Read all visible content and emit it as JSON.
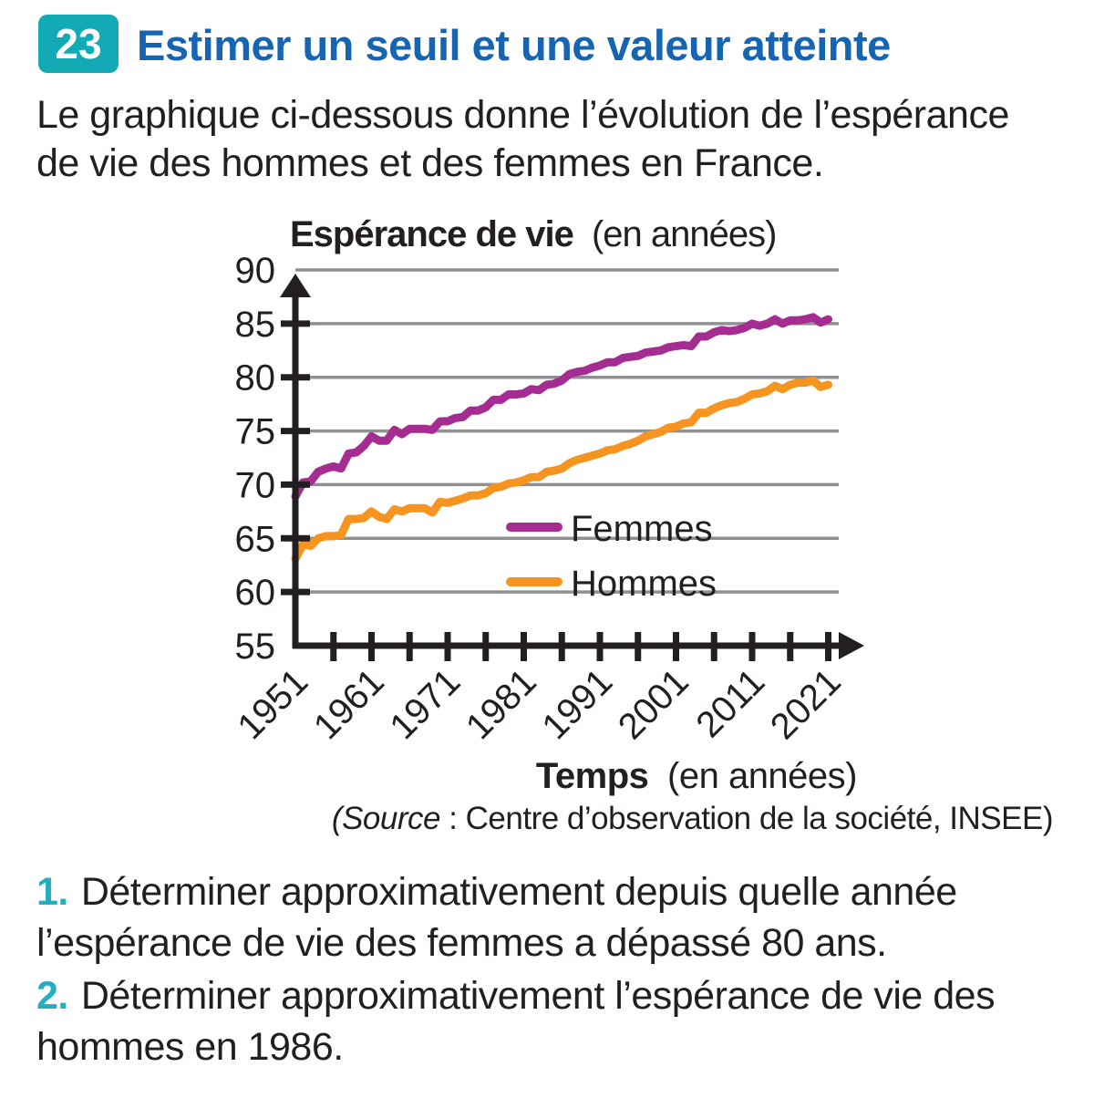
{
  "exercise": {
    "number": "23",
    "title": "Estimer un seuil et une valeur atteinte",
    "intro_lines": [
      "Le graphique ci-dessous donne l’évolution de l’espérance",
      "de vie des hommes et des femmes en France."
    ],
    "source": {
      "italic": "(Source",
      "rest": " : Centre d’observation de la société, INSEE)"
    },
    "questions": [
      {
        "number": "1.",
        "lines": [
          "Déterminer approximativement depuis quelle année",
          "l’espérance de vie des femmes a dépassé 80 ans."
        ]
      },
      {
        "number": "2.",
        "lines": [
          "Déterminer approximativement l’espérance de vie des",
          "hommes en 1986."
        ]
      }
    ]
  },
  "colors": {
    "badge_teal": "#12abb5",
    "title_blue": "#1565b3",
    "question_teal": "#23afc0",
    "text_black": "#231f20",
    "grid_gray": "#8f9093",
    "axis_black": "#231f20",
    "femmes_purple": "#a52c90",
    "hommes_orange": "#f5941f"
  },
  "chart_data": {
    "type": "line",
    "title_bold": "Espérance de vie",
    "title_unit": "(en années)",
    "xlabel_bold": "Temps",
    "xlabel_unit": "(en années)",
    "grid": true,
    "legend_position": "inside-right",
    "x_axis": {
      "min": 1951,
      "max": 2021,
      "tick_step": 5,
      "label_step": 10,
      "labels": [
        1951,
        1961,
        1971,
        1981,
        1991,
        2001,
        2011,
        2021
      ]
    },
    "y_axis": {
      "min": 55,
      "max": 90,
      "label_ticks": [
        90,
        85,
        80,
        75,
        70,
        65,
        60,
        55
      ],
      "side_ticks": [
        85,
        80,
        75,
        70,
        65,
        60
      ],
      "gridlines": [
        90,
        85,
        80,
        75,
        70,
        65,
        60
      ]
    },
    "years": [
      1951,
      1952,
      1953,
      1954,
      1955,
      1956,
      1957,
      1958,
      1959,
      1960,
      1961,
      1962,
      1963,
      1964,
      1965,
      1966,
      1967,
      1968,
      1969,
      1970,
      1971,
      1972,
      1973,
      1974,
      1975,
      1976,
      1977,
      1978,
      1979,
      1980,
      1981,
      1982,
      1983,
      1984,
      1985,
      1986,
      1987,
      1988,
      1989,
      1990,
      1991,
      1992,
      1993,
      1994,
      1995,
      1996,
      1997,
      1998,
      1999,
      2000,
      2001,
      2002,
      2003,
      2004,
      2005,
      2006,
      2007,
      2008,
      2009,
      2010,
      2011,
      2012,
      2013,
      2014,
      2015,
      2016,
      2017,
      2018,
      2019,
      2020,
      2021
    ],
    "series": [
      {
        "name": "Femmes",
        "color": "#a52c90",
        "values": [
          68.9,
          70.2,
          70.3,
          71.2,
          71.5,
          71.7,
          71.5,
          72.9,
          73.0,
          73.6,
          74.5,
          74.1,
          74.1,
          75.1,
          74.7,
          75.2,
          75.2,
          75.2,
          75.1,
          75.9,
          75.9,
          76.2,
          76.3,
          76.9,
          76.9,
          77.2,
          77.9,
          77.9,
          78.4,
          78.4,
          78.5,
          78.9,
          78.8,
          79.3,
          79.4,
          79.7,
          80.3,
          80.5,
          80.6,
          80.9,
          81.1,
          81.4,
          81.4,
          81.8,
          81.9,
          82.0,
          82.3,
          82.4,
          82.5,
          82.8,
          82.9,
          83.0,
          82.9,
          83.8,
          83.8,
          84.2,
          84.4,
          84.3,
          84.4,
          84.6,
          85.0,
          84.8,
          85.0,
          85.4,
          85.0,
          85.3,
          85.3,
          85.4,
          85.6,
          85.1,
          85.4
        ]
      },
      {
        "name": "Hommes",
        "color": "#f5941f",
        "values": [
          63.1,
          64.4,
          64.3,
          65.0,
          65.2,
          65.2,
          65.3,
          66.8,
          66.8,
          66.9,
          67.5,
          67.0,
          66.8,
          67.7,
          67.5,
          67.8,
          67.8,
          67.8,
          67.4,
          68.4,
          68.3,
          68.5,
          68.7,
          69.0,
          69.0,
          69.2,
          69.7,
          69.8,
          70.1,
          70.2,
          70.4,
          70.7,
          70.7,
          71.2,
          71.3,
          71.5,
          72.0,
          72.3,
          72.5,
          72.7,
          72.9,
          73.2,
          73.3,
          73.6,
          73.8,
          74.1,
          74.5,
          74.7,
          74.9,
          75.3,
          75.4,
          75.7,
          75.8,
          76.7,
          76.7,
          77.1,
          77.4,
          77.6,
          77.7,
          78.0,
          78.4,
          78.5,
          78.7,
          79.2,
          78.9,
          79.3,
          79.5,
          79.5,
          79.7,
          79.1,
          79.3
        ]
      }
    ]
  }
}
